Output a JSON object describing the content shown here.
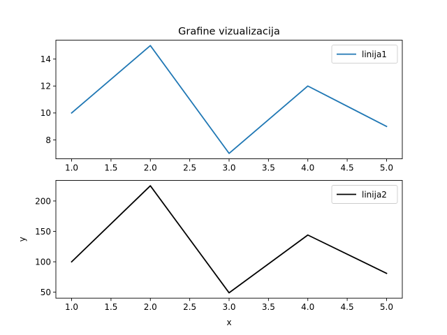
{
  "chart_data": [
    {
      "type": "line",
      "title": "Grafine vizualizacija",
      "xlabel": "",
      "ylabel": "",
      "x": [
        1,
        2,
        3,
        4,
        5
      ],
      "series": [
        {
          "name": "linija1",
          "values": [
            10,
            15,
            7,
            12,
            9
          ],
          "color": "#1f77b4"
        }
      ],
      "xlim": [
        0.8,
        5.2
      ],
      "ylim": [
        6.6,
        15.4
      ],
      "xticks": [
        1.0,
        1.5,
        2.0,
        2.5,
        3.0,
        3.5,
        4.0,
        4.5,
        5.0
      ],
      "xtick_labels": [
        "1.0",
        "1.5",
        "2.0",
        "2.5",
        "3.0",
        "3.5",
        "4.0",
        "4.5",
        "5.0"
      ],
      "yticks": [
        8,
        10,
        12,
        14
      ],
      "ytick_labels": [
        "8",
        "10",
        "12",
        "14"
      ],
      "grid": false,
      "legend": "top-right"
    },
    {
      "type": "line",
      "title": "",
      "xlabel": "x",
      "ylabel": "y",
      "x": [
        1,
        2,
        3,
        4,
        5
      ],
      "series": [
        {
          "name": "linija2",
          "values": [
            100,
            225,
            49,
            144,
            81
          ],
          "color": "#000000"
        }
      ],
      "xlim": [
        0.8,
        5.2
      ],
      "ylim": [
        40.2,
        233.8
      ],
      "xticks": [
        1.0,
        1.5,
        2.0,
        2.5,
        3.0,
        3.5,
        4.0,
        4.5,
        5.0
      ],
      "xtick_labels": [
        "1.0",
        "1.5",
        "2.0",
        "2.5",
        "3.0",
        "3.5",
        "4.0",
        "4.5",
        "5.0"
      ],
      "yticks": [
        50,
        100,
        150,
        200
      ],
      "ytick_labels": [
        "50",
        "100",
        "150",
        "200"
      ],
      "grid": false,
      "legend": "top-right"
    }
  ]
}
